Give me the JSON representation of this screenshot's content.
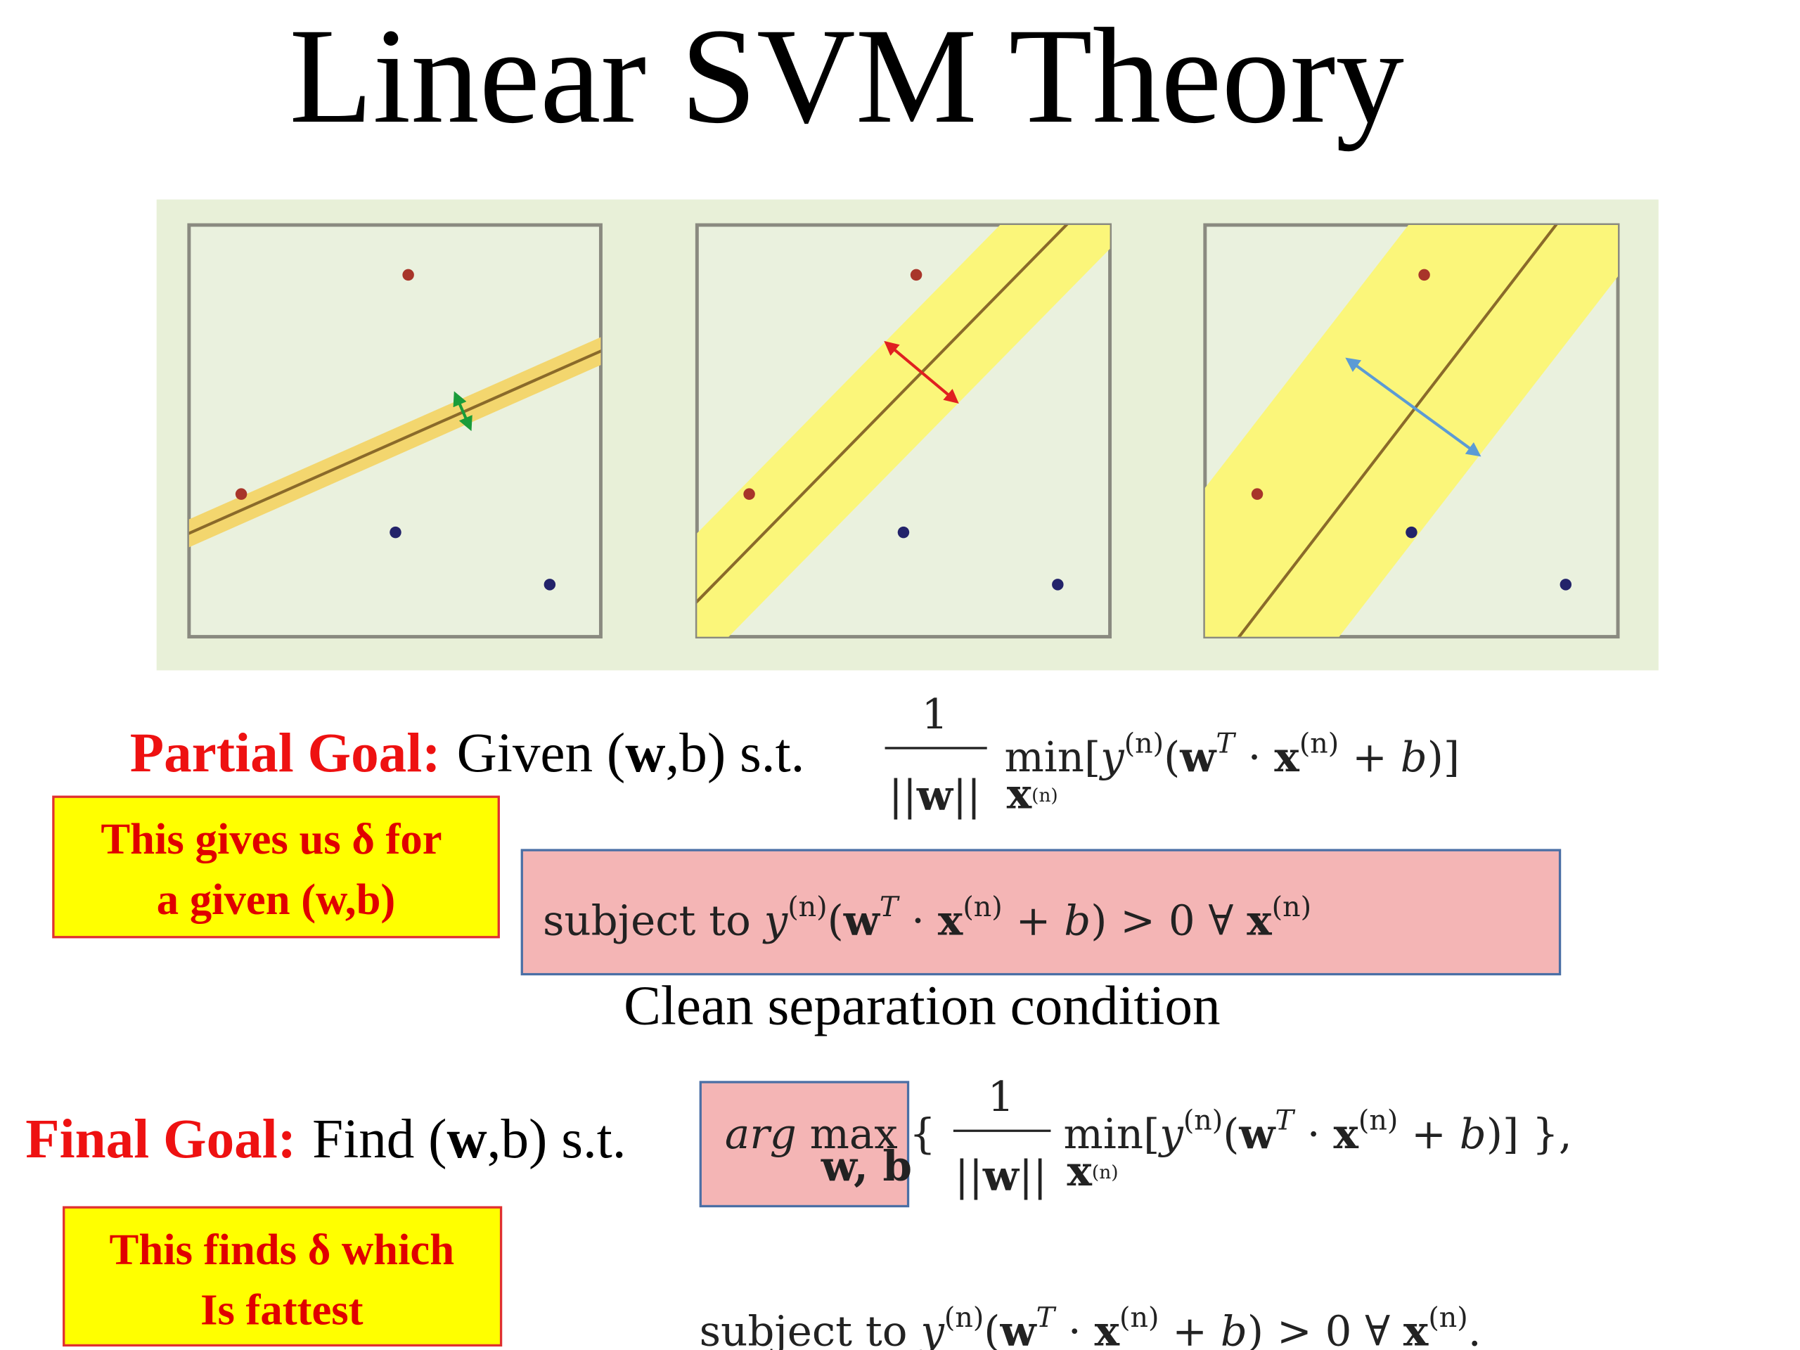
{
  "title": "Linear SVM Theory",
  "partial_goal": {
    "label": "Partial Goal:",
    "text": [
      "Given (",
      "w",
      ",b) s.t."
    ]
  },
  "objective": {
    "numerator": "1",
    "denominator": [
      "||",
      "w",
      "||"
    ],
    "min_sub": [
      "x",
      "(n)"
    ],
    "body": [
      "min",
      "[",
      "y",
      "(n)",
      "(",
      "w",
      "T",
      " · ",
      "x",
      "(n)",
      " + ",
      "b",
      ")]"
    ]
  },
  "note_partial": [
    "This gives us δ for",
    "a given (w,b)"
  ],
  "constraint": [
    "subject  to  ",
    "y",
    "(n)",
    "(",
    "w",
    "T",
    " · ",
    "x",
    "(n)",
    " + ",
    "b",
    ") > 0   ∀ ",
    "x",
    "(n)"
  ],
  "constraint_caption": "Clean separation condition",
  "final_goal": {
    "label": "Final Goal:",
    "text": [
      "Find (",
      "w",
      ",b) s.t."
    ]
  },
  "argmax": {
    "arg": "arg",
    "max": " max",
    "sub": "w, b",
    "open": "{"
  },
  "final_objective": {
    "numerator": "1",
    "denominator": [
      "||",
      "w",
      "||"
    ],
    "min_sub": [
      "x",
      "(n)"
    ],
    "body": [
      "min",
      "[",
      "y",
      "(n)",
      "(",
      "w",
      "T",
      " · ",
      "x",
      "(n)",
      " + ",
      "b",
      ")]",
      "  },"
    ]
  },
  "note_final": [
    "This finds δ which",
    "Is fattest"
  ],
  "final_constraint": [
    "subject  to  ",
    "y",
    "(n)",
    "(",
    "w",
    "T",
    " · ",
    "x",
    "(n)",
    " + ",
    "b",
    ") > 0   ∀ ",
    "x",
    "(n)",
    "."
  ]
}
